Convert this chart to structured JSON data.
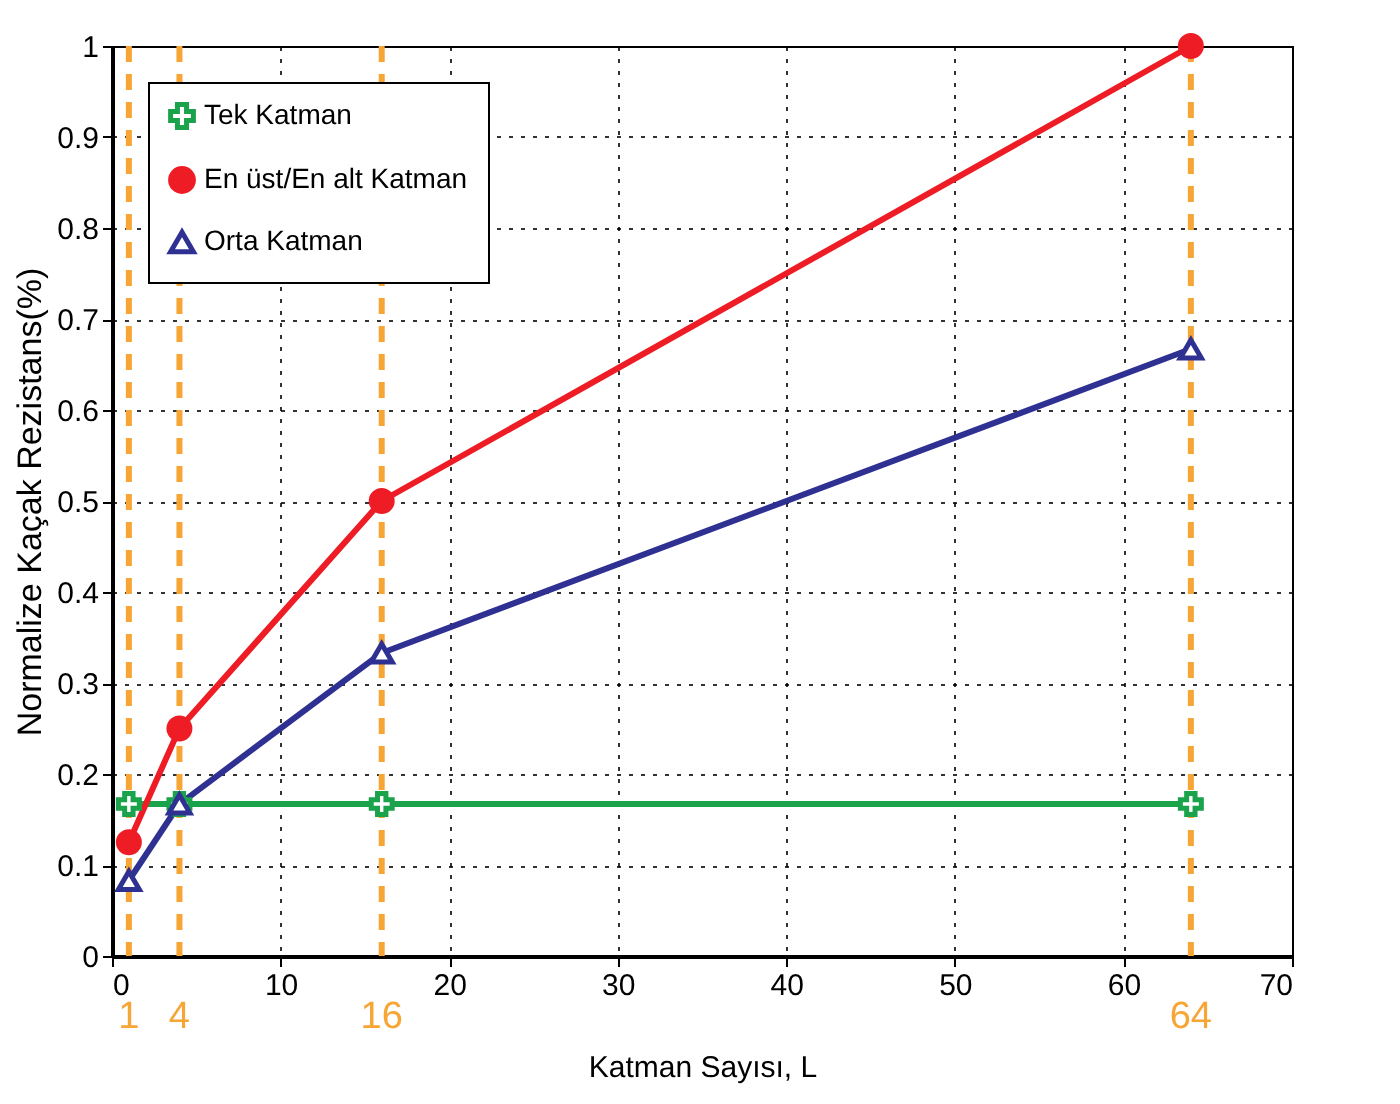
{
  "chart_data": {
    "type": "line",
    "xlabel": "Katman Sayısı, L",
    "ylabel": "Normalize Kaçak Rezistans(%)",
    "x": [
      1,
      4,
      16,
      64
    ],
    "series": [
      {
        "name": "Tek Katman",
        "color": "#1aa34a",
        "values": [
          0.167,
          0.167,
          0.167,
          0.167
        ],
        "marker": "cross"
      },
      {
        "name": "En üst/En alt Katman",
        "color": "#ee1c25",
        "values": [
          0.125,
          0.25,
          0.5,
          1
        ],
        "marker": "circle"
      },
      {
        "name": "Orta Katman",
        "color": "#2e3192",
        "values": [
          0.083,
          0.167,
          0.333,
          0.667
        ],
        "marker": "triangle"
      }
    ],
    "xlim": [
      0,
      70
    ],
    "xticks": [
      0,
      10,
      20,
      30,
      40,
      50,
      60,
      70
    ],
    "ylim": [
      0,
      1
    ],
    "yticks": [
      0,
      0.1,
      0.2,
      0.3,
      0.4,
      0.5,
      0.6,
      0.7,
      0.8,
      0.9,
      1
    ],
    "ref_lines": [
      {
        "axis": "x",
        "value": 1,
        "label": "1",
        "color": "#f7a535",
        "line_style": "dashed"
      },
      {
        "axis": "x",
        "value": 4,
        "label": "4",
        "color": "#f7a535",
        "line_style": "dashed"
      },
      {
        "axis": "x",
        "value": 16,
        "label": "16",
        "color": "#f7a535",
        "line_style": "dashed"
      },
      {
        "axis": "x",
        "value": 64,
        "label": "64",
        "color": "#f7a535",
        "line_style": "dashed"
      }
    ],
    "grid": true,
    "legend": "top left",
    "line_style": "solid"
  }
}
